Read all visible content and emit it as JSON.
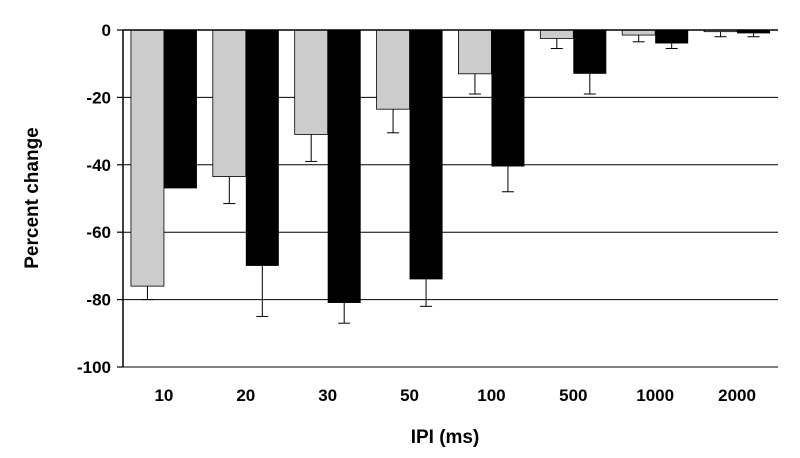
{
  "chart_data": {
    "type": "bar",
    "title": "",
    "xlabel": "IPI (ms)",
    "ylabel": "Percent change",
    "categories": [
      "10",
      "20",
      "30",
      "50",
      "100",
      "500",
      "1000",
      "2000"
    ],
    "ylim": [
      -100,
      0
    ],
    "yticks": [
      0,
      -20,
      -40,
      -60,
      -80,
      -100
    ],
    "grid": true,
    "legend": "none",
    "series": [
      {
        "color": "#cccccc",
        "values": [
          -76,
          -43.5,
          -31,
          -23.5,
          -13,
          -2.5,
          -1.5,
          -0.5
        ],
        "errors": [
          4,
          8,
          8,
          7,
          6,
          3,
          2,
          1.5
        ]
      },
      {
        "color": "#000000",
        "values": [
          -47,
          -70,
          -81,
          -74,
          -40.5,
          -13,
          -4,
          -1
        ],
        "errors": [
          0,
          15,
          6,
          8,
          7.5,
          6,
          1.5,
          1
        ]
      }
    ]
  }
}
